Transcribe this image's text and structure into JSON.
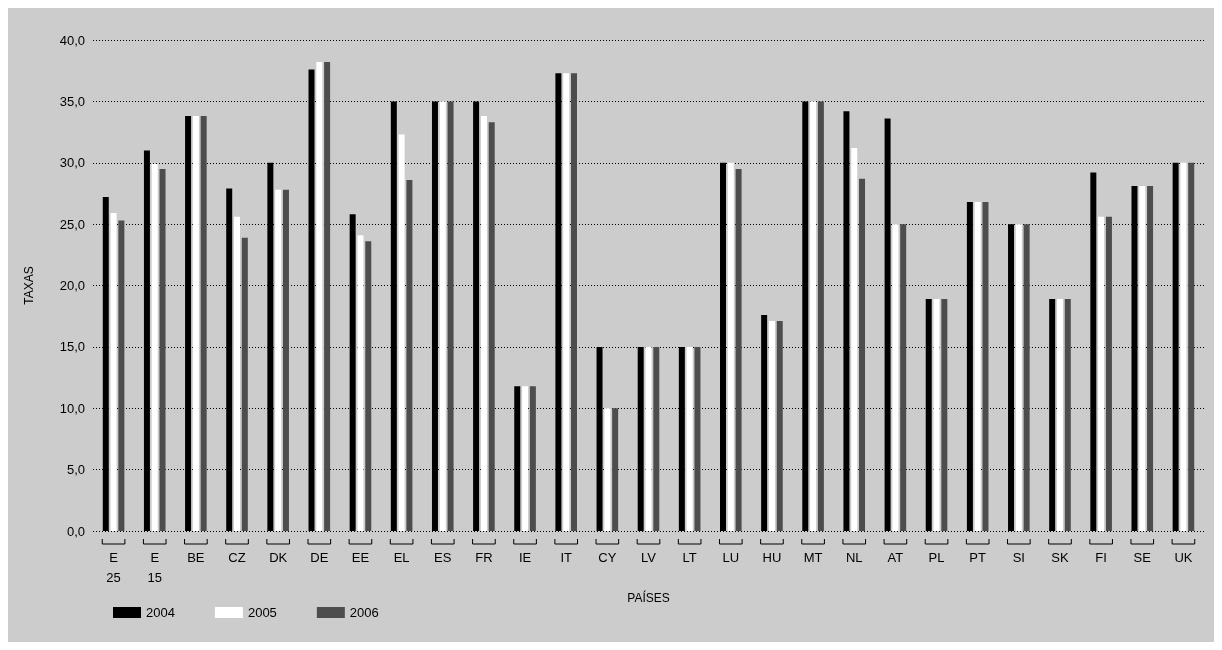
{
  "chart_data": {
    "type": "bar",
    "xlabel": "PAÍSES",
    "ylabel": "TAXAS",
    "categories": [
      "E\n25",
      "E\n15",
      "BE",
      "CZ",
      "DK",
      "DE",
      "EE",
      "EL",
      "ES",
      "FR",
      "IE",
      "IT",
      "CY",
      "LV",
      "LT",
      "LU",
      "HU",
      "MT",
      "NL",
      "AT",
      "PL",
      "PT",
      "SI",
      "SK",
      "FI",
      "SE",
      "UK"
    ],
    "series": [
      {
        "name": "2004",
        "color": "#000000",
        "values": [
          27.2,
          31.0,
          33.8,
          27.9,
          30.0,
          37.6,
          25.8,
          35.0,
          35.0,
          35.0,
          11.8,
          37.3,
          15.0,
          15.0,
          15.0,
          30.0,
          17.6,
          35.0,
          34.2,
          33.6,
          18.9,
          26.8,
          25.0,
          18.9,
          29.2,
          28.1,
          30.0
        ]
      },
      {
        "name": "2005",
        "color": "#ffffff",
        "values": [
          25.9,
          29.9,
          33.8,
          25.6,
          27.8,
          38.2,
          24.1,
          32.3,
          35.0,
          33.8,
          11.8,
          37.3,
          10.0,
          15.0,
          15.0,
          30.0,
          17.1,
          35.0,
          31.2,
          25.0,
          18.9,
          26.8,
          25.0,
          18.9,
          25.6,
          28.1,
          30.0
        ]
      },
      {
        "name": "2006",
        "color": "#4d4d4d",
        "values": [
          25.3,
          29.5,
          33.8,
          23.9,
          27.8,
          38.2,
          23.6,
          28.6,
          35.0,
          33.3,
          11.8,
          37.3,
          10.0,
          15.0,
          15.0,
          29.5,
          17.1,
          35.0,
          28.7,
          25.0,
          18.9,
          26.8,
          25.0,
          18.9,
          25.6,
          28.1,
          30.0
        ]
      }
    ],
    "ylim": [
      0,
      40
    ],
    "yticks": [
      {
        "value": 0,
        "label": "0,0"
      },
      {
        "value": 5,
        "label": "5,0"
      },
      {
        "value": 10,
        "label": "10,0"
      },
      {
        "value": 15,
        "label": "15,0"
      },
      {
        "value": 20,
        "label": "20,0"
      },
      {
        "value": 25,
        "label": "25,0"
      },
      {
        "value": 30,
        "label": "30,0"
      },
      {
        "value": 35,
        "label": "35,0"
      },
      {
        "value": 40,
        "label": "40,0"
      }
    ],
    "grid": "y",
    "legend": "bottom left"
  }
}
